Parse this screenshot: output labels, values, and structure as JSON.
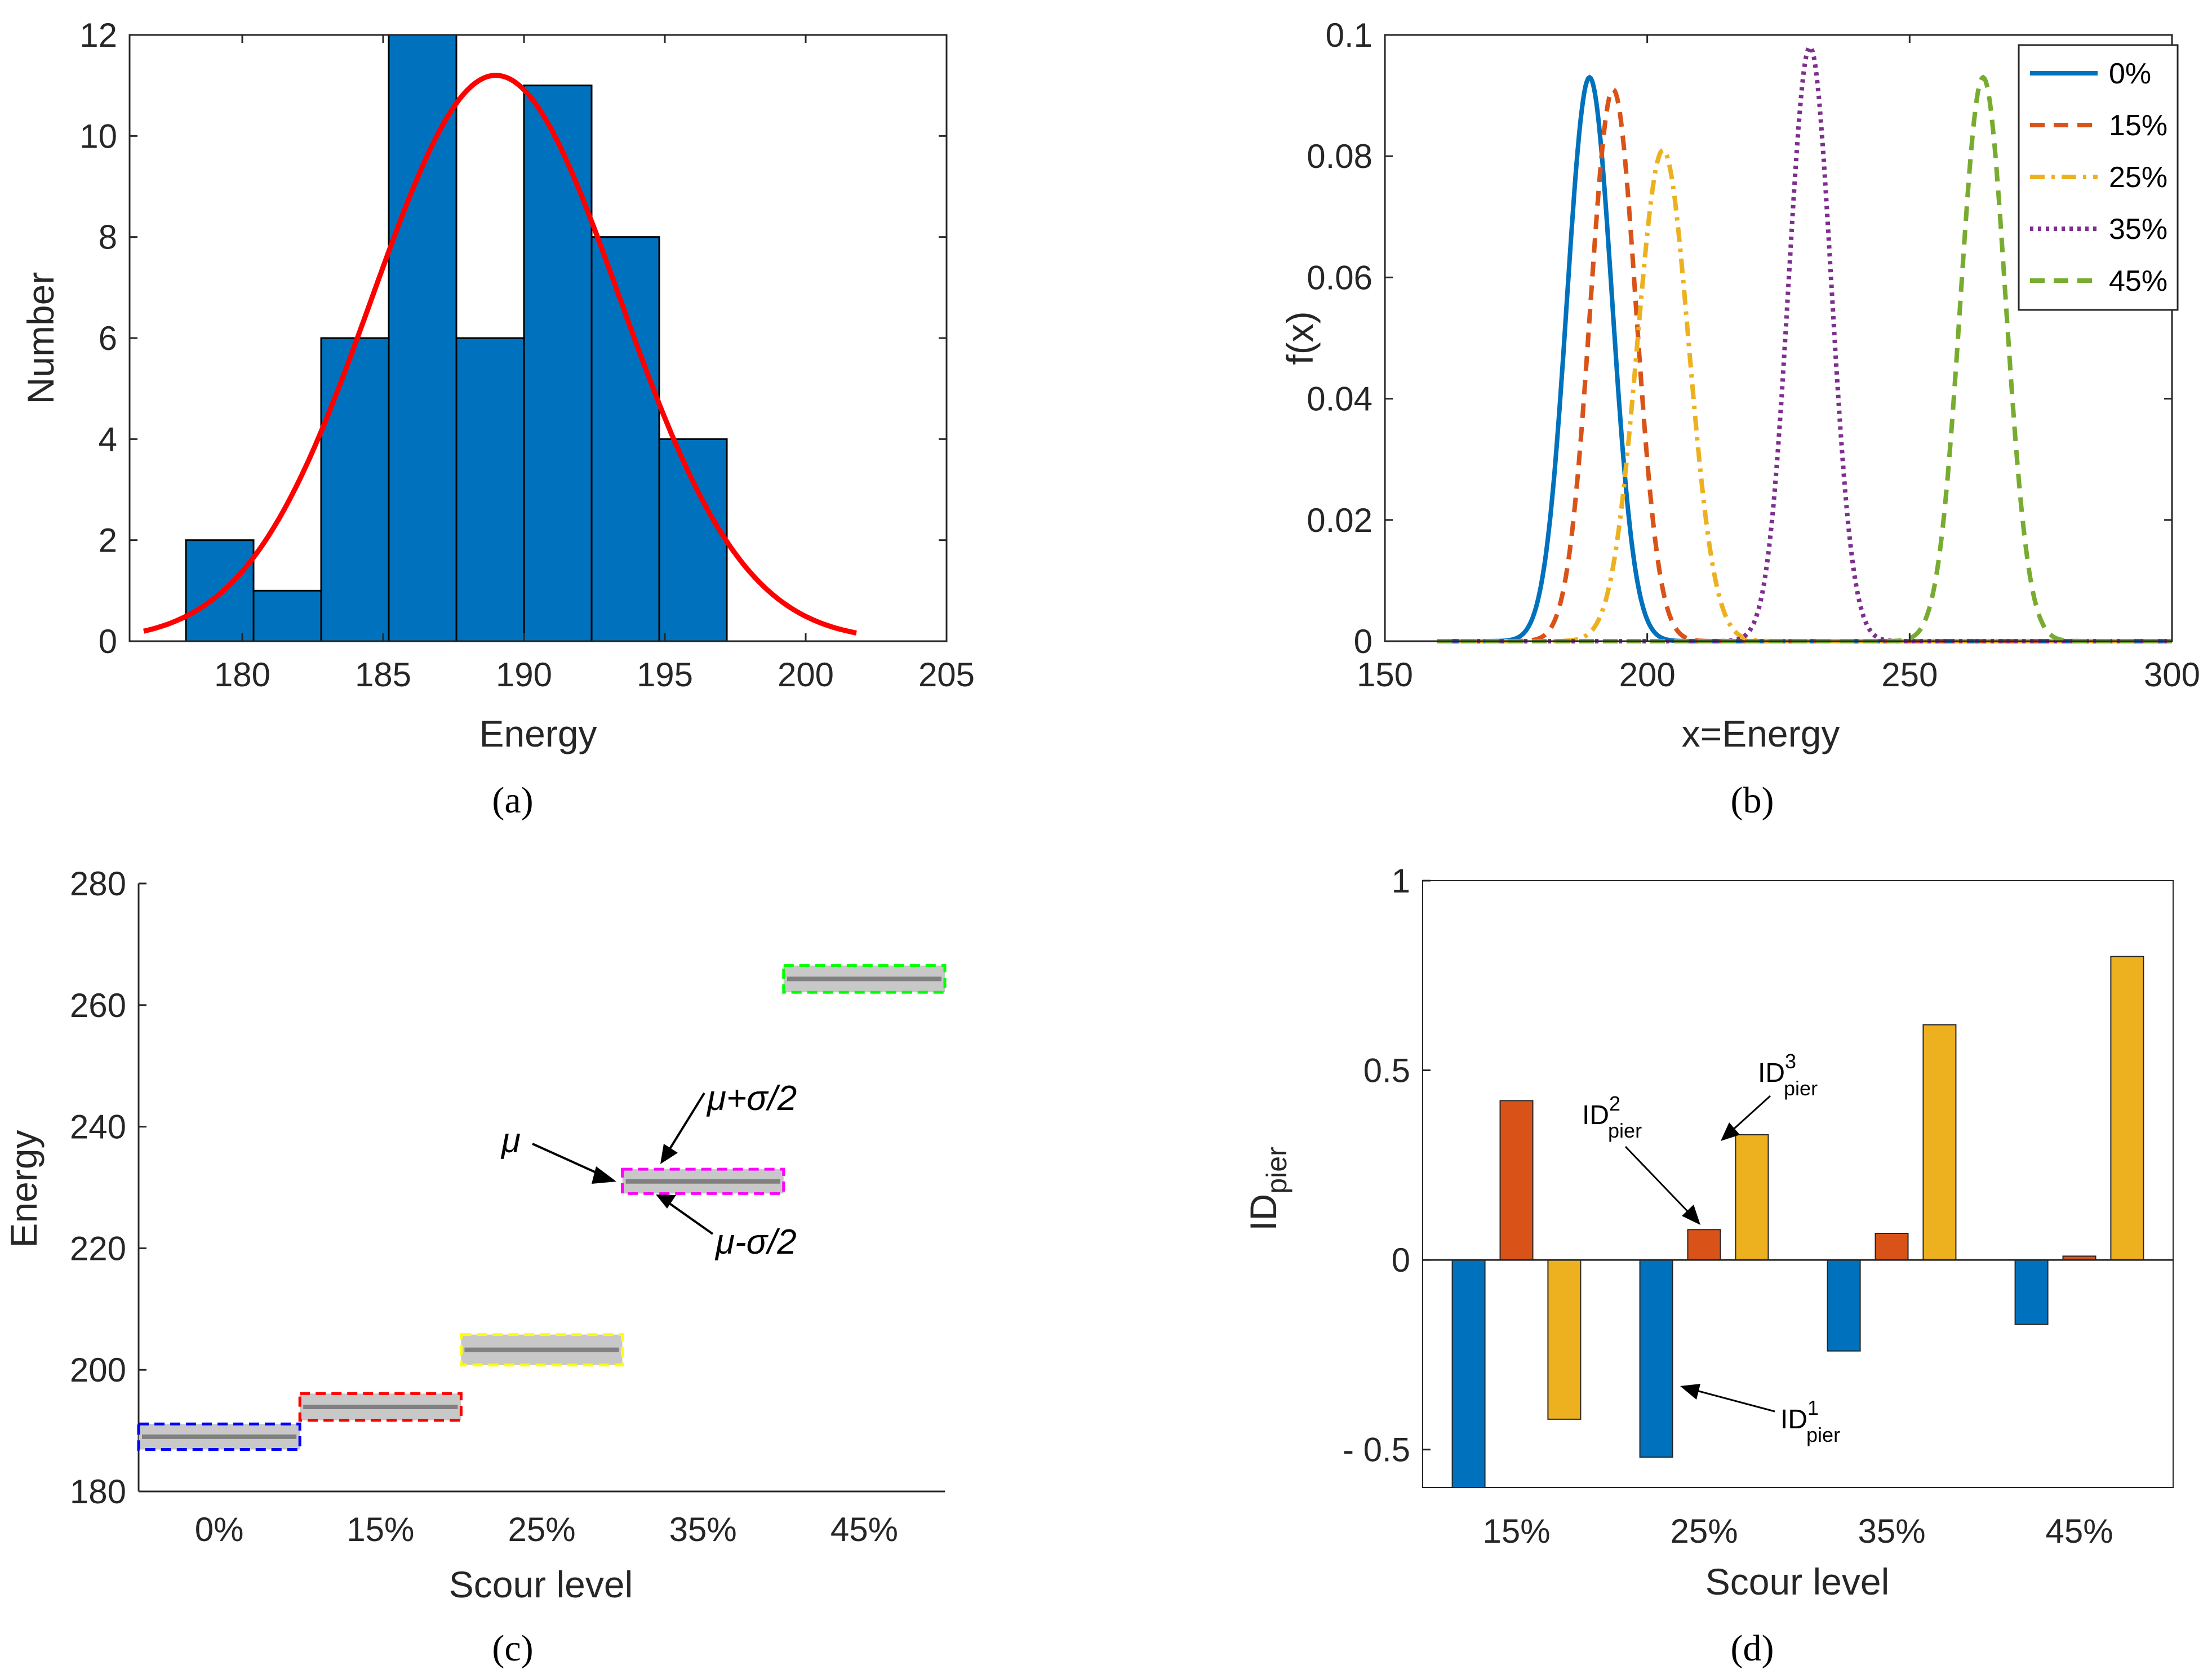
{
  "chart_data": [
    {
      "panel": "a",
      "caption": "(a)",
      "type": "bar",
      "subtype": "histogram-with-normal-fit",
      "xlabel": "Energy",
      "ylabel": "Number",
      "xlim": [
        176,
        205
      ],
      "ylim": [
        0,
        12
      ],
      "xticks": [
        180,
        185,
        190,
        195,
        200,
        205
      ],
      "yticks": [
        0,
        2,
        4,
        6,
        8,
        10,
        12
      ],
      "bins": [
        {
          "x0": 178.0,
          "x1": 180.4,
          "count": 2
        },
        {
          "x0": 180.4,
          "x1": 182.8,
          "count": 1
        },
        {
          "x0": 182.8,
          "x1": 185.2,
          "count": 6
        },
        {
          "x0": 185.2,
          "x1": 187.6,
          "count": 12
        },
        {
          "x0": 187.6,
          "x1": 190.0,
          "count": 6
        },
        {
          "x0": 190.0,
          "x1": 192.4,
          "count": 11
        },
        {
          "x0": 192.4,
          "x1": 194.8,
          "count": 8
        },
        {
          "x0": 194.8,
          "x1": 197.2,
          "count": 4
        }
      ],
      "fit": {
        "type": "normal",
        "mean": 189.0,
        "sd": 4.4,
        "peak": 11.2,
        "x_range": [
          176.5,
          201.8
        ],
        "color": "#ff0000"
      },
      "bar_color": "#0072bd"
    },
    {
      "panel": "b",
      "caption": "(b)",
      "type": "line",
      "xlabel": "x=Energy",
      "ylabel": "f(x)",
      "xlim": [
        150,
        300
      ],
      "ylim": [
        0,
        0.1
      ],
      "xticks": [
        150,
        200,
        250,
        300
      ],
      "yticks": [
        0,
        0.02,
        0.04,
        0.06,
        0.08,
        0.1
      ],
      "ytick_labels": [
        "0",
        "0.02",
        "0.04",
        "0.06",
        "0.08",
        "0.1"
      ],
      "x_range": [
        160,
        300
      ],
      "legend_position": "top-right",
      "series": [
        {
          "name": "0%",
          "mean": 189,
          "sd": 4.3,
          "peak": 0.093,
          "color": "#0072bd",
          "dash": "solid"
        },
        {
          "name": "15%",
          "mean": 193.5,
          "sd": 4.35,
          "peak": 0.091,
          "color": "#d95319",
          "dash": "dashed"
        },
        {
          "name": "25%",
          "mean": 203,
          "sd": 4.9,
          "peak": 0.081,
          "color": "#edb120",
          "dash": "dashdot"
        },
        {
          "name": "35%",
          "mean": 231,
          "sd": 4.05,
          "peak": 0.098,
          "color": "#7e2f8e",
          "dash": "dotted"
        },
        {
          "name": "45%",
          "mean": 264,
          "sd": 4.3,
          "peak": 0.093,
          "color": "#77ac30",
          "dash": "dashed"
        }
      ]
    },
    {
      "panel": "c",
      "caption": "(c)",
      "type": "bar",
      "subtype": "mean-band",
      "xlabel": "Scour level",
      "ylabel": "Energy",
      "ylim": [
        180,
        280
      ],
      "yticks": [
        180,
        200,
        220,
        240,
        260,
        280
      ],
      "categories": [
        "0%",
        "15%",
        "25%",
        "35%",
        "45%"
      ],
      "values": [
        189,
        193.9,
        203.3,
        231,
        264.3
      ],
      "half_band": [
        2.1,
        2.2,
        2.5,
        2.0,
        2.2
      ],
      "edge_colors": [
        "#0000ff",
        "#ff0000",
        "#ffff00",
        "#ff00ff",
        "#00ff00"
      ],
      "annotations": {
        "mu": "μ",
        "mu_plus": "μ+σ/2",
        "mu_minus": "μ-σ/2"
      }
    },
    {
      "panel": "d",
      "caption": "(d)",
      "type": "bar",
      "xlabel": "Scour level",
      "ylabel": "ID",
      "ylabel_sub": "pier",
      "ylim": [
        -0.6,
        1
      ],
      "yticks": [
        -0.5,
        0,
        0.5,
        1
      ],
      "ytick_labels": [
        "- 0.5",
        "0",
        "0.5",
        "1"
      ],
      "categories": [
        "15%",
        "25%",
        "35%",
        "45%"
      ],
      "series": [
        {
          "name": "ID1pier",
          "values": [
            -0.6,
            -0.52,
            -0.24,
            -0.17
          ],
          "color": "#0072bd"
        },
        {
          "name": "ID2pier",
          "values": [
            0.42,
            0.08,
            0.07,
            0.01
          ],
          "color": "#d95319"
        },
        {
          "name": "ID3pier",
          "values": [
            -0.42,
            0.33,
            0.62,
            0.8
          ],
          "color": "#edb120"
        }
      ],
      "annotations": {
        "id_main": "ID",
        "id_sub": "pier",
        "sup1": "1",
        "sup2": "2",
        "sup3": "3"
      }
    }
  ]
}
